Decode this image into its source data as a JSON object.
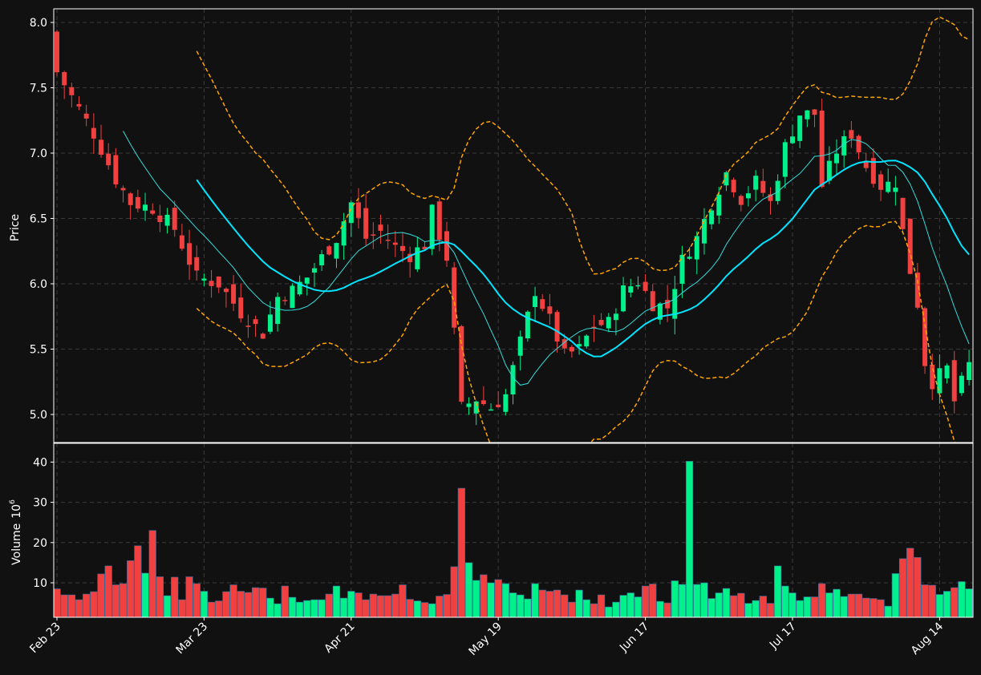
{
  "chart_data": {
    "type": "candlestick",
    "theme": {
      "background": "#111111",
      "grid_color": "#3a3a3a",
      "frame_color": "#ffffff",
      "up_color": "#00f08c",
      "down_color": "#f04040",
      "bollinger_color": "#ffa500",
      "sma_fast_color": "#33dddd",
      "sma_slow_color": "#00e5ff"
    },
    "price_panel": {
      "ylabel": "Price",
      "ylim": [
        4.8,
        8.1
      ],
      "yticks": [
        "5.0",
        "5.5",
        "6.0",
        "6.5",
        "7.0",
        "7.5",
        "8.0"
      ],
      "grid": true
    },
    "volume_panel": {
      "ylabel": "Volume",
      "ylabel_exponent": "6",
      "ylim": [
        0.5,
        44
      ],
      "yticks": [
        "10",
        "20",
        "30",
        "40"
      ],
      "grid": true
    },
    "x_axis": {
      "tick_labels": [
        {
          "label": "Feb 23",
          "index": 0
        },
        {
          "label": "Mar 23",
          "index": 20
        },
        {
          "label": "Apr 21",
          "index": 40
        },
        {
          "label": "May 19",
          "index": 60
        },
        {
          "label": "Jun 17",
          "index": 80
        },
        {
          "label": "Jul 17",
          "index": 100
        },
        {
          "label": "Aug 14",
          "index": 120
        }
      ],
      "label_rotation": 45
    },
    "num_bars": 125,
    "close_keypoints": [
      [
        0,
        7.62
      ],
      [
        5,
        7.15
      ],
      [
        8,
        6.8
      ],
      [
        10,
        6.62
      ],
      [
        13,
        6.58
      ],
      [
        16,
        6.42
      ],
      [
        19,
        6.05
      ],
      [
        22,
        6.0
      ],
      [
        25,
        5.78
      ],
      [
        28,
        5.62
      ],
      [
        30,
        5.9
      ],
      [
        32,
        5.95
      ],
      [
        34,
        6.05
      ],
      [
        36,
        6.2
      ],
      [
        38,
        6.35
      ],
      [
        40,
        6.62
      ],
      [
        42,
        6.35
      ],
      [
        44,
        6.4
      ],
      [
        46,
        6.28
      ],
      [
        48,
        6.22
      ],
      [
        50,
        6.3
      ],
      [
        51,
        6.55
      ],
      [
        53,
        6.2
      ],
      [
        55,
        5.05
      ],
      [
        57,
        5.12
      ],
      [
        59,
        5.05
      ],
      [
        61,
        5.15
      ],
      [
        63,
        5.55
      ],
      [
        65,
        5.95
      ],
      [
        67,
        5.72
      ],
      [
        69,
        5.45
      ],
      [
        71,
        5.5
      ],
      [
        73,
        5.68
      ],
      [
        75,
        5.7
      ],
      [
        77,
        5.95
      ],
      [
        79,
        6.02
      ],
      [
        81,
        5.85
      ],
      [
        83,
        5.82
      ],
      [
        85,
        6.18
      ],
      [
        87,
        6.35
      ],
      [
        89,
        6.62
      ],
      [
        91,
        6.85
      ],
      [
        93,
        6.65
      ],
      [
        95,
        6.78
      ],
      [
        97,
        6.62
      ],
      [
        99,
        7.05
      ],
      [
        101,
        7.3
      ],
      [
        103,
        7.3
      ],
      [
        104,
        6.75
      ],
      [
        106,
        7.02
      ],
      [
        108,
        7.15
      ],
      [
        110,
        6.9
      ],
      [
        112,
        6.75
      ],
      [
        114,
        6.78
      ],
      [
        115,
        6.4
      ],
      [
        116,
        6.1
      ],
      [
        117,
        5.85
      ],
      [
        118,
        5.4
      ],
      [
        119,
        5.25
      ],
      [
        121,
        5.35
      ],
      [
        122,
        5.1
      ],
      [
        124,
        5.38
      ]
    ],
    "volume_values": [
      8.5,
      7,
      7,
      5.8,
      7.2,
      7.8,
      12.2,
      14.2,
      9.5,
      9.8,
      15.5,
      19.2,
      12.4,
      23,
      11.5,
      6.8,
      11.4,
      5.8,
      11.5,
      9.8,
      7.9,
      5.2,
      5.5,
      7.8,
      9.5,
      7.9,
      7.6,
      8.8,
      8.7,
      6.2,
      4.8,
      9.2,
      6.4,
      5.2,
      5.6,
      5.8,
      5.8,
      7.2,
      9.2,
      6.2,
      7.9,
      7.5,
      5.8,
      7.2,
      6.8,
      6.8,
      7.2,
      9.5,
      5.9,
      5.5,
      5.1,
      4.8,
      6.7,
      7.1,
      14,
      33.5,
      15,
      10.6,
      12,
      10,
      10.8,
      9.8,
      7.5,
      7,
      6,
      9.8,
      8.2,
      7.9,
      8.2,
      7,
      5.2,
      8.2,
      5.8,
      4.8,
      7,
      4,
      5.2,
      6.9,
      7.5,
      6.5,
      9.2,
      9.7,
      5.4,
      5,
      10.5,
      9.6,
      40.2,
      9.6,
      10,
      6.1,
      7.5,
      8.6,
      6.8,
      7.4,
      4.9,
      5.6,
      6.7,
      4.9,
      14.2,
      9.2,
      7.5,
      5.6,
      6.5,
      6.5,
      9.8,
      7.5,
      8.4,
      6.6,
      7.2,
      7.2,
      6.2,
      6.1,
      5.8,
      4.2,
      12.3,
      16,
      18.6,
      16.3,
      9.5,
      9.4,
      7.1,
      7.9,
      8.8,
      10.3,
      8.5,
      7.4
    ]
  }
}
